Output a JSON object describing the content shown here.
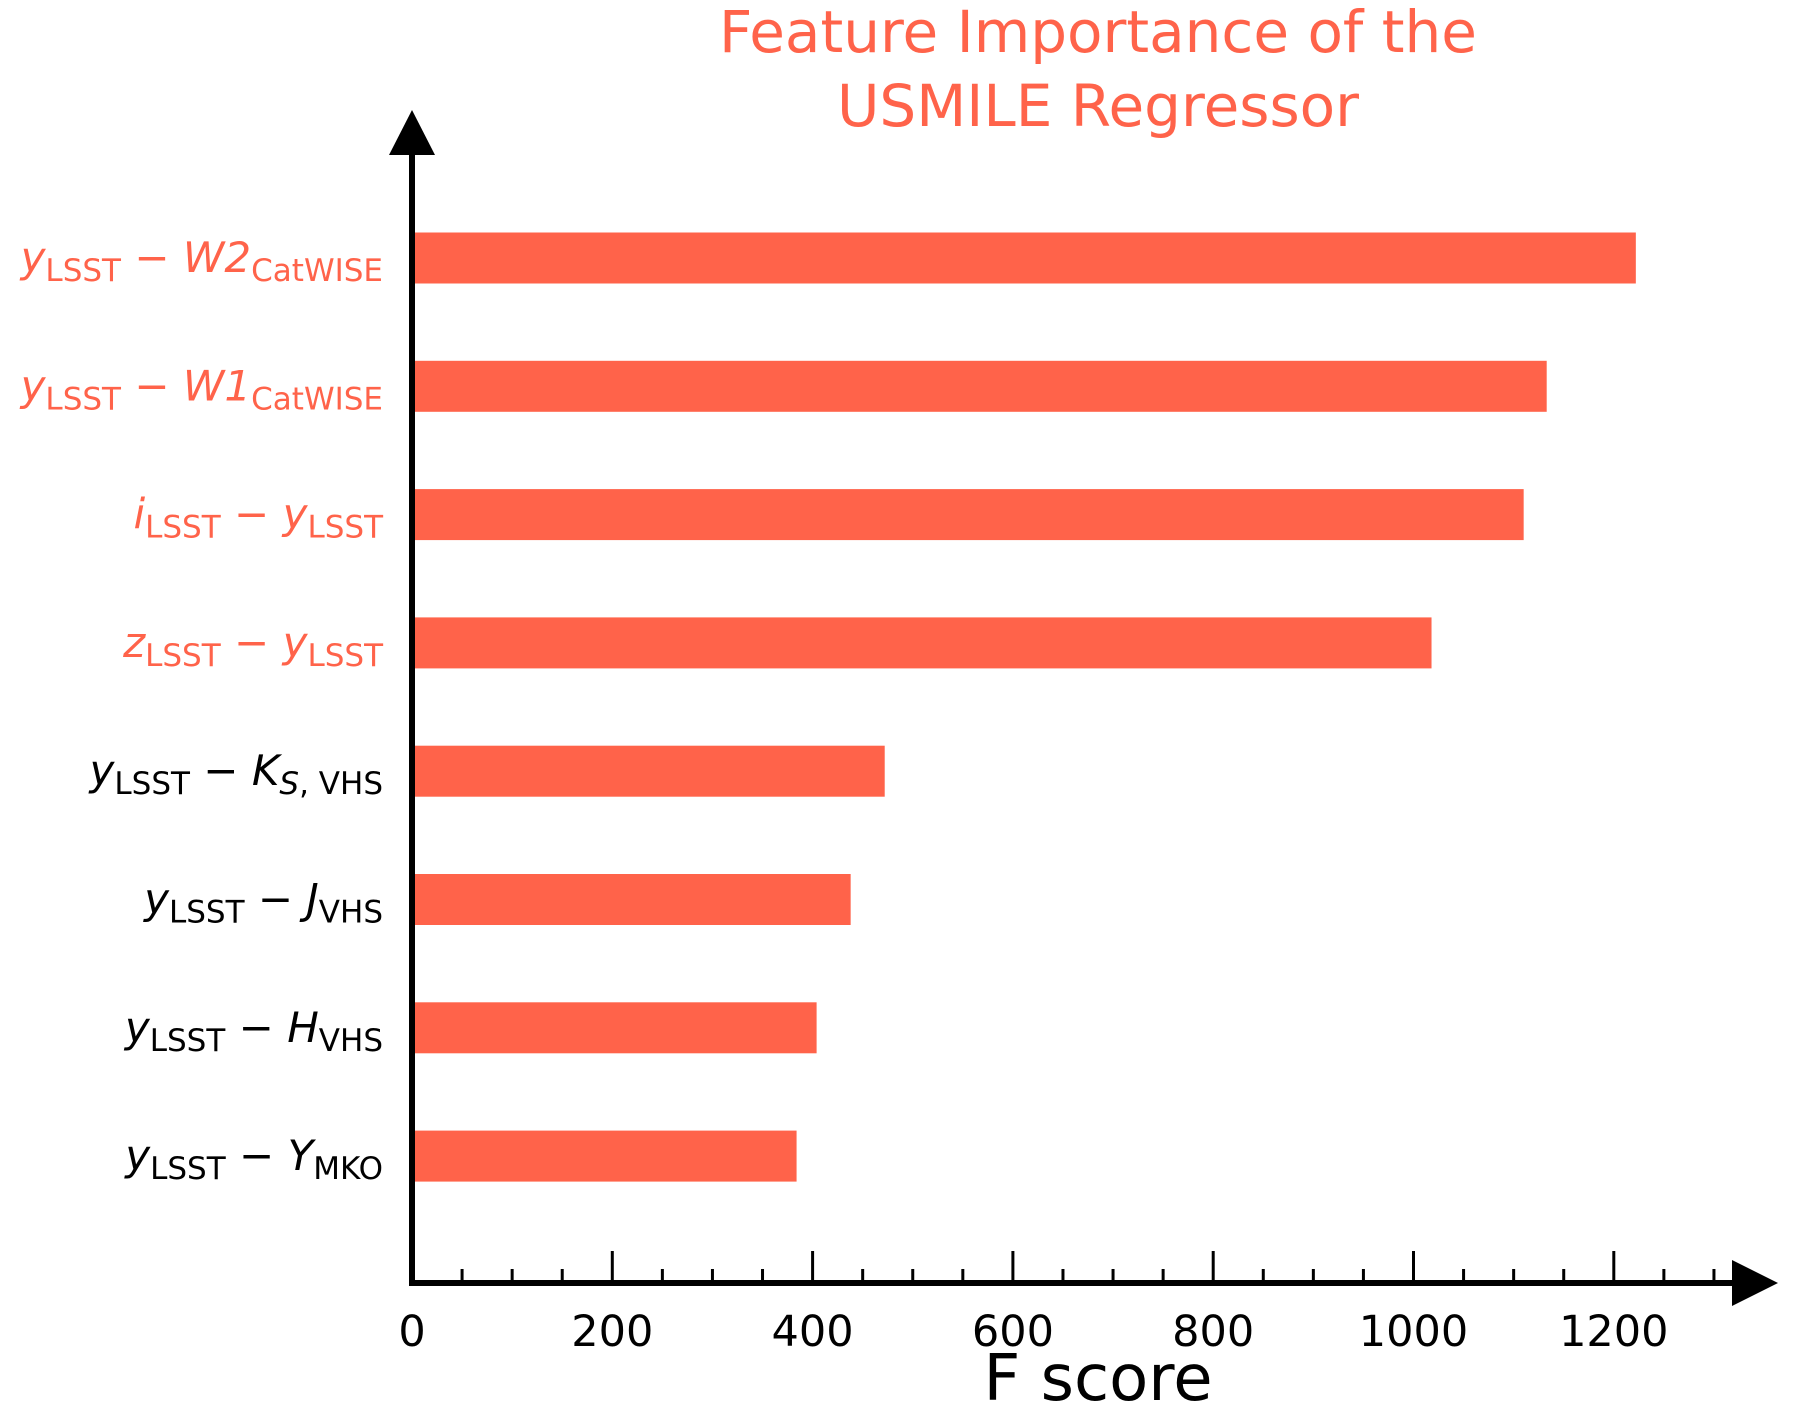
{
  "colors": {
    "bar": "#ff634a",
    "highlight_label": "#ff634a",
    "normal_label": "#000000",
    "axis": "#000000"
  },
  "chart_data": {
    "type": "bar",
    "orientation": "horizontal",
    "title_lines": [
      "Feature Importance of the",
      "USMILE Regressor"
    ],
    "xlabel": "F score",
    "ylabel": "",
    "xlim": [
      0,
      1300
    ],
    "x_ticks": [
      0,
      200,
      400,
      600,
      800,
      1000,
      1200
    ],
    "x_minor_step": 50,
    "grid": false,
    "categories": [
      {
        "parts": [
          {
            "t": "y",
            "style": "ital"
          },
          {
            "t": "LSST",
            "style": "sub"
          },
          {
            "t": " − ",
            "style": ""
          },
          {
            "t": "W2",
            "style": "ital"
          },
          {
            "t": "CatWISE",
            "style": "sub"
          }
        ],
        "value": 1222,
        "highlight": true
      },
      {
        "parts": [
          {
            "t": "y",
            "style": "ital"
          },
          {
            "t": "LSST",
            "style": "sub"
          },
          {
            "t": " − ",
            "style": ""
          },
          {
            "t": "W1",
            "style": "ital"
          },
          {
            "t": "CatWISE",
            "style": "sub"
          }
        ],
        "value": 1133,
        "highlight": true
      },
      {
        "parts": [
          {
            "t": "i",
            "style": "ital"
          },
          {
            "t": "LSST",
            "style": "sub"
          },
          {
            "t": " − ",
            "style": ""
          },
          {
            "t": "y",
            "style": "ital"
          },
          {
            "t": "LSST",
            "style": "sub"
          }
        ],
        "value": 1110,
        "highlight": true
      },
      {
        "parts": [
          {
            "t": "z",
            "style": "ital"
          },
          {
            "t": "LSST",
            "style": "sub"
          },
          {
            "t": " − ",
            "style": ""
          },
          {
            "t": "y",
            "style": "ital"
          },
          {
            "t": "LSST",
            "style": "sub"
          }
        ],
        "value": 1018,
        "highlight": true
      },
      {
        "parts": [
          {
            "t": "y",
            "style": "ital"
          },
          {
            "t": "LSST",
            "style": "sub"
          },
          {
            "t": " − ",
            "style": ""
          },
          {
            "t": "K",
            "style": "ital"
          },
          {
            "t": "S",
            "style": "sub ital"
          },
          {
            "t": ", VHS",
            "style": "sub"
          }
        ],
        "value": 472,
        "highlight": false
      },
      {
        "parts": [
          {
            "t": "y",
            "style": "ital"
          },
          {
            "t": "LSST",
            "style": "sub"
          },
          {
            "t": " − ",
            "style": ""
          },
          {
            "t": "J",
            "style": "ital"
          },
          {
            "t": "VHS",
            "style": "sub"
          }
        ],
        "value": 438,
        "highlight": false
      },
      {
        "parts": [
          {
            "t": "y",
            "style": "ital"
          },
          {
            "t": "LSST",
            "style": "sub"
          },
          {
            "t": " − ",
            "style": ""
          },
          {
            "t": "H",
            "style": "ital"
          },
          {
            "t": "VHS",
            "style": "sub"
          }
        ],
        "value": 404,
        "highlight": false
      },
      {
        "parts": [
          {
            "t": "y",
            "style": "ital"
          },
          {
            "t": "LSST",
            "style": "sub"
          },
          {
            "t": " − ",
            "style": ""
          },
          {
            "t": "Y",
            "style": "ital"
          },
          {
            "t": "MKO",
            "style": "sub"
          }
        ],
        "value": 384,
        "highlight": false
      }
    ]
  }
}
